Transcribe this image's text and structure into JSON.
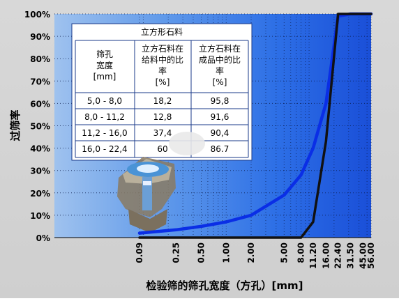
{
  "chart_data": {
    "type": "line",
    "title": "",
    "xlabel": "检验筛的筛孔宽度（方孔）[mm]",
    "ylabel": "过筛率",
    "x_scale": "log",
    "xlim": [
      0.09,
      56.0
    ],
    "ylim": [
      0,
      100
    ],
    "x_ticks": [
      {
        "value": 0.09,
        "label": "0.09"
      },
      {
        "value": 0.25,
        "label": "0.25"
      },
      {
        "value": 0.5,
        "label": "0.50"
      },
      {
        "value": 1.0,
        "label": "1.00"
      },
      {
        "value": 2.0,
        "label": "2.00"
      },
      {
        "value": 5.0,
        "label": "5.00"
      },
      {
        "value": 8.0,
        "label": "8.00"
      },
      {
        "value": 11.2,
        "label": "11.20"
      },
      {
        "value": 16.0,
        "label": "16.00"
      },
      {
        "value": 22.4,
        "label": "22.40"
      },
      {
        "value": 31.5,
        "label": "31.50"
      },
      {
        "value": 45.0,
        "label": "45.00"
      },
      {
        "value": 56.0,
        "label": "56.00"
      }
    ],
    "y_ticks": [
      {
        "value": 0,
        "label": "0%"
      },
      {
        "value": 10,
        "label": "10%"
      },
      {
        "value": 20,
        "label": "20%"
      },
      {
        "value": 30,
        "label": "30%"
      },
      {
        "value": 40,
        "label": "40%"
      },
      {
        "value": 50,
        "label": "50%"
      },
      {
        "value": 60,
        "label": "60%"
      },
      {
        "value": 70,
        "label": "70%"
      },
      {
        "value": 80,
        "label": "80%"
      },
      {
        "value": 90,
        "label": "90%"
      },
      {
        "value": 100,
        "label": "100%"
      }
    ],
    "grid": true,
    "series": [
      {
        "color": "#0a2ee6",
        "points": [
          [
            0.09,
            2
          ],
          [
            0.25,
            3.5
          ],
          [
            0.5,
            5
          ],
          [
            1.0,
            7
          ],
          [
            2.0,
            10
          ],
          [
            5.0,
            19
          ],
          [
            8.0,
            28
          ],
          [
            11.2,
            40
          ],
          [
            16.0,
            60
          ],
          [
            22.4,
            99
          ],
          [
            31.5,
            100
          ],
          [
            45.0,
            100
          ],
          [
            56.0,
            100
          ]
        ]
      },
      {
        "color": "#111111",
        "points": [
          [
            0.09,
            0
          ],
          [
            2.0,
            0
          ],
          [
            5.0,
            0
          ],
          [
            8.0,
            0
          ],
          [
            11.2,
            7
          ],
          [
            16.0,
            43
          ],
          [
            22.4,
            100
          ],
          [
            31.5,
            100
          ],
          [
            45.0,
            100
          ],
          [
            56.0,
            100
          ]
        ]
      }
    ],
    "table": {
      "title": "立方形石料",
      "headers": [
        "筛孔宽度 [mm]",
        "立方石料在给料中的比率 [%]",
        "立方石料在成品中的比率 [%]"
      ],
      "rows": [
        [
          "5,0 -   8,0",
          "18,2",
          "95,8"
        ],
        [
          "8,0 - 11,2",
          "12,8",
          "91,6"
        ],
        [
          "11,2 - 16,0",
          "37,4",
          "90,4"
        ],
        [
          "16,0 - 22,4",
          "60",
          "86.7"
        ]
      ]
    }
  }
}
